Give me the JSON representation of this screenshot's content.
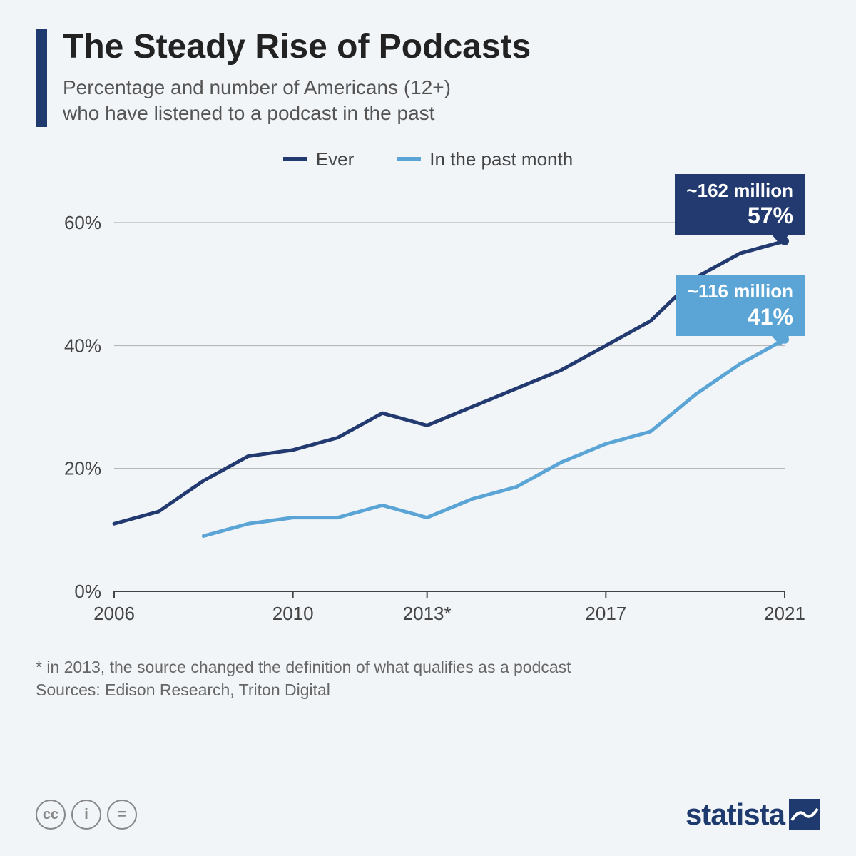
{
  "title": "The Steady Rise of Podcasts",
  "subtitle": "Percentage and number of Americans (12+)\nwho have listened to a podcast in the past",
  "colors": {
    "background": "#f2f5f8",
    "title_bar": "#1e3a6e",
    "text_dark": "#222222",
    "text_mid": "#555555",
    "grid": "#b8b8b8",
    "axis": "#444444",
    "series_ever": "#223a70",
    "series_month": "#5aa5d6"
  },
  "legend": [
    {
      "label": "Ever",
      "color": "#223a70"
    },
    {
      "label": "In the past month",
      "color": "#5aa5d6"
    }
  ],
  "chart": {
    "type": "line",
    "xlim": [
      2006,
      2021
    ],
    "ylim": [
      0,
      65
    ],
    "yticks": [
      0,
      20,
      40,
      60
    ],
    "ytick_labels": [
      "0%",
      "20%",
      "40%",
      "60%"
    ],
    "xticks": [
      2006,
      2010,
      2013,
      2017,
      2021
    ],
    "xtick_labels": [
      "2006",
      "2010",
      "2013*",
      "2017",
      "2021"
    ],
    "line_width": 5,
    "series": {
      "ever": {
        "color": "#223a70",
        "points": [
          {
            "x": 2006,
            "y": 11
          },
          {
            "x": 2007,
            "y": 13
          },
          {
            "x": 2008,
            "y": 18
          },
          {
            "x": 2009,
            "y": 22
          },
          {
            "x": 2010,
            "y": 23
          },
          {
            "x": 2011,
            "y": 25
          },
          {
            "x": 2012,
            "y": 29
          },
          {
            "x": 2013,
            "y": 27
          },
          {
            "x": 2014,
            "y": 30
          },
          {
            "x": 2015,
            "y": 33
          },
          {
            "x": 2016,
            "y": 36
          },
          {
            "x": 2017,
            "y": 40
          },
          {
            "x": 2018,
            "y": 44
          },
          {
            "x": 2019,
            "y": 51
          },
          {
            "x": 2020,
            "y": 55
          },
          {
            "x": 2021,
            "y": 57
          }
        ]
      },
      "month": {
        "color": "#5aa5d6",
        "points": [
          {
            "x": 2008,
            "y": 9
          },
          {
            "x": 2009,
            "y": 11
          },
          {
            "x": 2010,
            "y": 12
          },
          {
            "x": 2011,
            "y": 12
          },
          {
            "x": 2012,
            "y": 14
          },
          {
            "x": 2013,
            "y": 12
          },
          {
            "x": 2014,
            "y": 15
          },
          {
            "x": 2015,
            "y": 17
          },
          {
            "x": 2016,
            "y": 21
          },
          {
            "x": 2017,
            "y": 24
          },
          {
            "x": 2018,
            "y": 26
          },
          {
            "x": 2019,
            "y": 32
          },
          {
            "x": 2020,
            "y": 37
          },
          {
            "x": 2021,
            "y": 41
          }
        ]
      }
    }
  },
  "callouts": {
    "ever": {
      "line1": "~162 million",
      "line2": "57%",
      "bg": "#223a70"
    },
    "month": {
      "line1": "~116 million",
      "line2": "41%",
      "bg": "#5aa5d6"
    }
  },
  "footnote_line1": "* in 2013, the source changed the definition of what qualifies as a podcast",
  "footnote_line2": "Sources: Edison Research, Triton Digital",
  "cc": [
    "cc",
    "i",
    "="
  ],
  "brand": "statista"
}
